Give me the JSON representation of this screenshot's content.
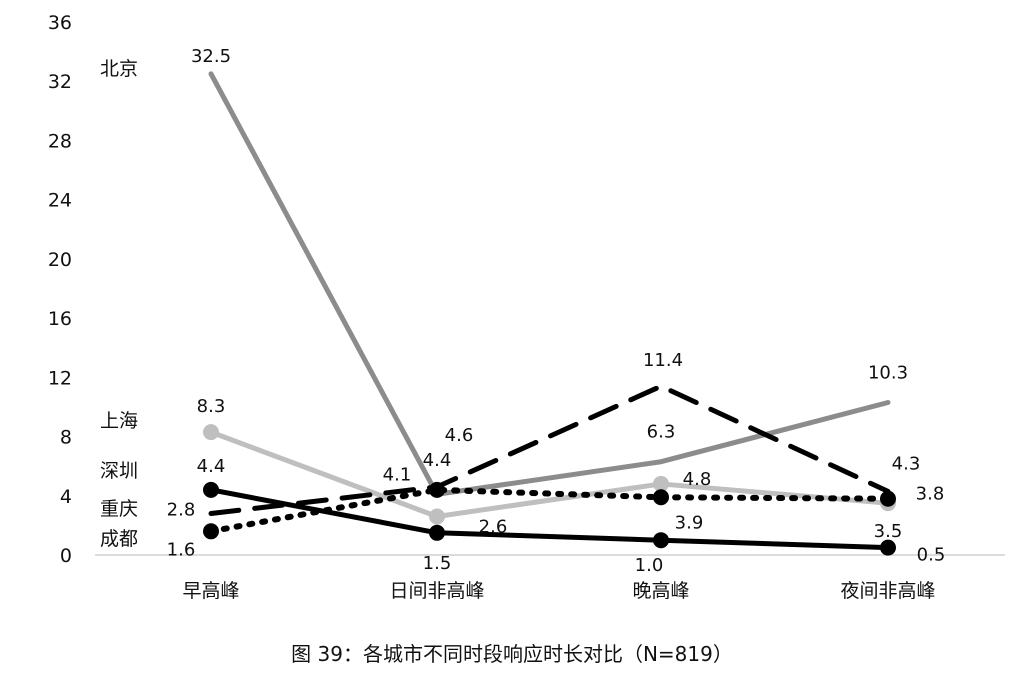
{
  "chart_data": {
    "type": "line",
    "categories": [
      "早高峰",
      "日间非高峰",
      "晚高峰",
      "夜间非高峰"
    ],
    "ylim": [
      0,
      36
    ],
    "yticks": [
      0,
      4,
      8,
      12,
      16,
      20,
      24,
      28,
      32,
      36
    ],
    "grid": false,
    "xlabel": "",
    "ylabel": "",
    "series": [
      {
        "name": "北京",
        "values": [
          32.5,
          4.1,
          6.3,
          10.3
        ],
        "color": "#8c8c8c",
        "style": "solid",
        "marker": false,
        "labels": [
          "32.5",
          "4.1",
          "6.3",
          "10.3"
        ]
      },
      {
        "name": "上海",
        "values": [
          8.3,
          2.6,
          4.8,
          3.5
        ],
        "color": "#bfbfbf",
        "style": "solid",
        "marker": true,
        "labels": [
          "8.3",
          "2.6",
          "4.8",
          "3.5"
        ]
      },
      {
        "name": "深圳",
        "values": [
          4.4,
          1.5,
          1.0,
          0.5
        ],
        "color": "#000000",
        "style": "solid",
        "marker": true,
        "labels": [
          "4.4",
          "1.5",
          "1.0",
          "0.5"
        ]
      },
      {
        "name": "重庆",
        "values": [
          2.8,
          4.6,
          11.4,
          4.3
        ],
        "color": "#000000",
        "style": "dashed",
        "marker": false,
        "labels": [
          "2.8",
          "4.6",
          "11.4",
          "4.3"
        ]
      },
      {
        "name": "成都",
        "values": [
          1.6,
          4.4,
          3.9,
          3.8
        ],
        "color": "#000000",
        "style": "dotted",
        "marker": true,
        "labels": [
          "1.6",
          "4.4",
          "3.9",
          "3.8"
        ]
      }
    ]
  },
  "caption": "图 39：各城市不同时段响应时长对比（N=819）"
}
